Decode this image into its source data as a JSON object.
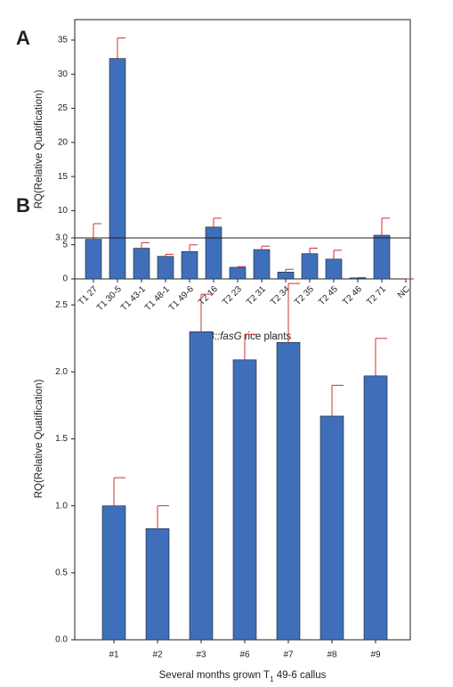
{
  "chart_data": [
    {
      "type": "bar",
      "label": "A",
      "ylabel": "RQ(Relative Quatification)",
      "xlabel": [
        "CTB::fasG",
        " rice plants"
      ],
      "categories": [
        "T1 27",
        "T1 30-5",
        "T1 43-1",
        "T1 48-1",
        "T1 49-6",
        "T2 16",
        "T2 23",
        "T2 31",
        "T2 34",
        "T2 35",
        "T2 45",
        "T2 46",
        "T2 71",
        "NC"
      ],
      "values": [
        5.8,
        32.3,
        4.5,
        3.3,
        4.0,
        7.6,
        1.7,
        4.3,
        1.0,
        3.7,
        2.9,
        0.15,
        6.4,
        0
      ],
      "errors": [
        2.3,
        3.0,
        0.8,
        0.3,
        1.0,
        1.3,
        0.1,
        0.5,
        0.4,
        0.8,
        1.3,
        0.05,
        2.5,
        0
      ],
      "color": "#3f6fba",
      "error_color": "#cc3333",
      "ylim": [
        0,
        38
      ],
      "yticks": [
        0,
        5,
        10,
        15,
        20,
        25,
        30,
        35
      ]
    },
    {
      "type": "bar",
      "label": "B",
      "ylabel": "RQ(Relative Quatification)",
      "xlabel": [
        "Several months grown T",
        "1",
        " 49-6 callus"
      ],
      "categories": [
        "#1",
        "#2",
        "#3",
        "#6",
        "#7",
        "#8",
        "#9"
      ],
      "values": [
        1.0,
        0.83,
        2.3,
        2.09,
        2.22,
        1.67,
        1.97
      ],
      "errors": [
        0.21,
        0.17,
        0.28,
        0.19,
        0.44,
        0.23,
        0.28
      ],
      "color": "#3f6fba",
      "error_color": "#cc3333",
      "ylim": [
        0,
        3
      ],
      "yticks": [
        {
          "value": 0,
          "label": "0.0"
        },
        {
          "value": 0.5,
          "label": "0.5"
        },
        {
          "value": 1,
          "label": "1.0"
        },
        {
          "value": 1.5,
          "label": "1.5"
        },
        {
          "value": 2,
          "label": "2.0"
        },
        {
          "value": 2.5,
          "label": "2.5"
        },
        {
          "value": 3,
          "label": "3.0"
        }
      ]
    }
  ]
}
